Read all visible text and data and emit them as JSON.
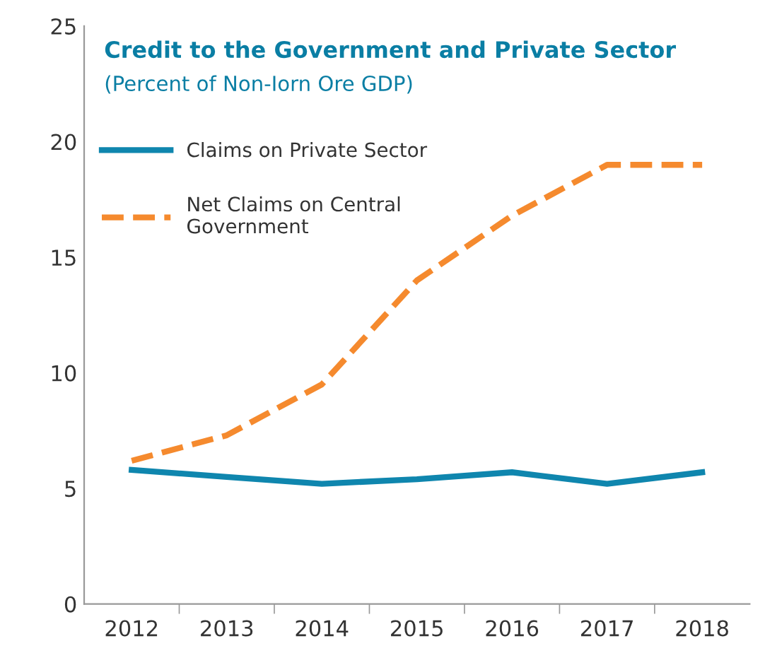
{
  "chart_data": {
    "type": "line",
    "title": "Credit to the Government and Private Sector",
    "subtitle": "(Percent of Non-Iorn Ore GDP)",
    "categories": [
      "2012",
      "2013",
      "2014",
      "2015",
      "2016",
      "2017",
      "2018"
    ],
    "series": [
      {
        "name": "Claims on Private Sector",
        "color": "#0f86ae",
        "line_style": "solid",
        "values": [
          5.8,
          5.5,
          5.2,
          5.4,
          5.7,
          5.2,
          5.7
        ]
      },
      {
        "name": "Net Claims on Central Government",
        "color": "#f58a2e",
        "line_style": "dashed",
        "values": [
          6.2,
          7.3,
          9.5,
          14.0,
          16.8,
          19.0,
          19.0
        ]
      }
    ],
    "ylim": [
      0,
      25
    ],
    "yticks": [
      0,
      5,
      10,
      15,
      20,
      25
    ],
    "grid": false,
    "legend": "top left",
    "marker": "none"
  }
}
